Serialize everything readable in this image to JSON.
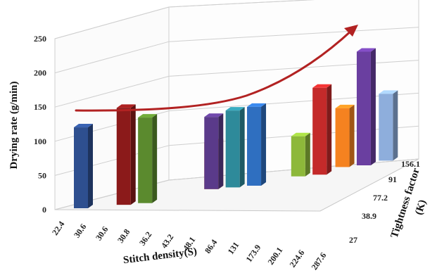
{
  "chart_data": {
    "type": "bar",
    "title": "",
    "ylabel": "Drying rate (g/min)",
    "xlabel": "Stitch density(S)",
    "zlabel": "Tightness factor (K)",
    "zlabel_line1": "Tightness factor",
    "zlabel_line2": "(K)",
    "ylim": [
      0,
      250
    ],
    "yticks": [
      "0",
      "50",
      "100",
      "150",
      "200",
      "250"
    ],
    "x_ticks": [
      "22.4",
      "30.6",
      "30.6",
      "30.8",
      "36.2",
      "43.2",
      "48.1",
      "86.4",
      "131",
      "173.9",
      "200.1",
      "224.6",
      "287.6"
    ],
    "depth_ticks": [
      "27",
      "38.9",
      "77.2",
      "91",
      "156.1"
    ],
    "series": [
      {
        "category": "22.4",
        "value": 121,
        "color": "#2E4F8F"
      },
      {
        "category": "30.6",
        "value": 145,
        "color": "#8B1A1A"
      },
      {
        "category": "30.6",
        "value": 128,
        "color": "#5B8A2E"
      },
      {
        "category": "43.2",
        "value": 70,
        "color": "#EE7722"
      },
      {
        "category": "48.1",
        "value": 108,
        "color": "#5A3A8A"
      },
      {
        "category": "86.4",
        "value": 115,
        "color": "#2E8A9A"
      },
      {
        "category": "131",
        "value": 118,
        "color": "#2F6FC0"
      },
      {
        "category": "200.1",
        "value": 60,
        "color": "#8DB83A"
      },
      {
        "category": "224.6",
        "value": 130,
        "color": "#C42A2A"
      },
      {
        "category": "224.6",
        "value": 88,
        "color": "#F58220"
      },
      {
        "category": "224.6",
        "value": 170,
        "color": "#6A3FA0"
      },
      {
        "category": "287.6",
        "value": 100,
        "color": "#8EAEDC"
      }
    ],
    "trend_arrow_color": "#B22222",
    "grid": true
  }
}
